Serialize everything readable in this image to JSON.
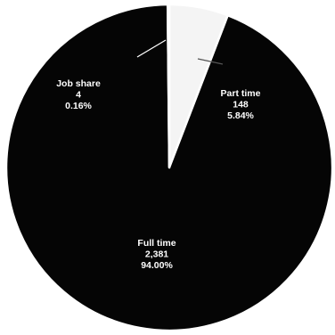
{
  "chart_data": {
    "type": "pie",
    "title": "",
    "slices": [
      {
        "name": "Part time",
        "value": 148,
        "value_label": "148",
        "percent": 5.84,
        "percent_label": "5.84%",
        "fill": "#f4f4f4",
        "label_color": "#ffffff"
      },
      {
        "name": "Full time",
        "value": 2381,
        "value_label": "2,381",
        "percent": 94.0,
        "percent_label": "94.00%",
        "fill": "#050505",
        "label_color": "#ffffff"
      },
      {
        "name": "Job share",
        "value": 4,
        "value_label": "4",
        "percent": 0.16,
        "percent_label": "0.16%",
        "fill": "#050505",
        "label_color": "#ffffff"
      }
    ],
    "start_angle_deg": 0,
    "direction": "clockwise",
    "legend": "none",
    "outline_color": "#ffffff"
  }
}
